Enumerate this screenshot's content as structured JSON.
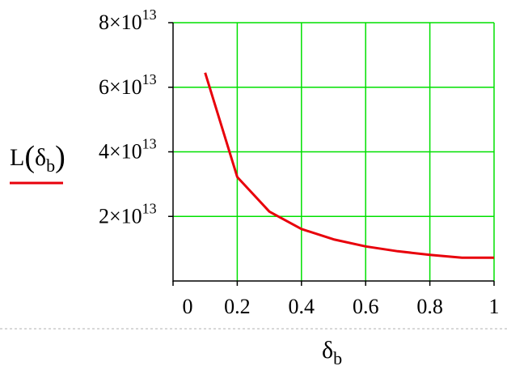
{
  "chart_data": {
    "type": "line",
    "x": [
      0.1,
      0.2,
      0.3,
      0.4,
      0.5,
      0.6,
      0.7,
      0.8,
      0.9,
      1.0
    ],
    "series": [
      {
        "values": [
          64500000000000.0,
          32200000000000.0,
          21500000000000.0,
          16100000000000.0,
          12900000000000.0,
          10700000000000.0,
          9200000000000.0,
          8100000000000.0,
          7200000000000.0,
          7200000000000.0
        ],
        "color": "#e8000b"
      }
    ],
    "xlim": [
      0,
      1
    ],
    "ylim": [
      0,
      80000000000000.0
    ],
    "x_ticks": [
      0,
      0.2,
      0.4,
      0.6,
      0.8,
      1
    ],
    "x_tick_labels": [
      "0",
      "0.2",
      "0.4",
      "0.6",
      "0.8",
      "1"
    ],
    "y_ticks": [
      20000000000000.0,
      40000000000000.0,
      60000000000000.0,
      80000000000000.0
    ],
    "y_tick_labels": [
      {
        "mantissa": "2×10",
        "exponent": "13"
      },
      {
        "mantissa": "4×10",
        "exponent": "13"
      },
      {
        "mantissa": "6×10",
        "exponent": "13"
      },
      {
        "mantissa": "8×10",
        "exponent": "13"
      }
    ],
    "ylabel": {
      "main": "L",
      "open": "(",
      "symbol": "δ",
      "sub": "b",
      "close": ")"
    },
    "xlabel": {
      "symbol": "δ",
      "sub": "b"
    },
    "grid": true,
    "grid_color": "#00e000",
    "axis_color": "#000000",
    "separator_color": "#b0b0b0"
  }
}
